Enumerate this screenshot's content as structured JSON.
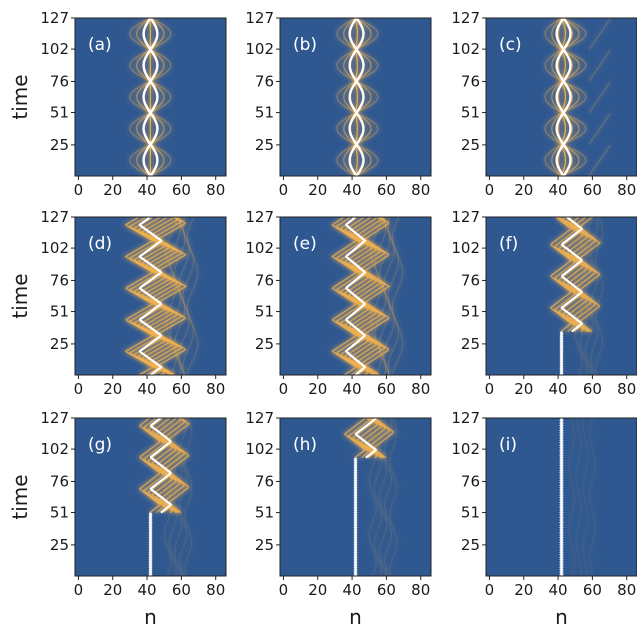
{
  "figure": {
    "background_color": "#2f5891",
    "wave_color": "#f3b24e",
    "peak_color": "#ffffff"
  },
  "chart_data": [
    {
      "type": "heatmap",
      "panel_label": "(a)",
      "pattern": "breathing",
      "xlabel": "",
      "ylabel": "time",
      "xlim": [
        -2,
        86
      ],
      "ylim": [
        0,
        127
      ],
      "x_ticks": [
        0,
        20,
        40,
        60,
        80
      ],
      "y_ticks": [
        25,
        51,
        76,
        102,
        127
      ],
      "grid": false
    },
    {
      "type": "heatmap",
      "panel_label": "(b)",
      "pattern": "breathing",
      "xlabel": "",
      "ylabel": "",
      "xlim": [
        -2,
        86
      ],
      "ylim": [
        0,
        127
      ],
      "x_ticks": [
        0,
        20,
        40,
        60,
        80
      ],
      "y_ticks": [
        25,
        51,
        76,
        102,
        127
      ],
      "grid": false
    },
    {
      "type": "heatmap",
      "panel_label": "(c)",
      "pattern": "breathing",
      "xlabel": "",
      "ylabel": "",
      "xlim": [
        -2,
        86
      ],
      "ylim": [
        0,
        127
      ],
      "x_ticks": [
        0,
        20,
        40,
        60,
        80
      ],
      "y_ticks": [
        25,
        51,
        76,
        102,
        127
      ],
      "grid": false
    },
    {
      "type": "heatmap",
      "panel_label": "(d)",
      "pattern": "zigzag",
      "xlabel": "",
      "ylabel": "time",
      "xlim": [
        -2,
        86
      ],
      "ylim": [
        0,
        127
      ],
      "x_ticks": [
        0,
        20,
        40,
        60,
        80
      ],
      "y_ticks": [
        25,
        51,
        76,
        102,
        127
      ],
      "grid": false
    },
    {
      "type": "heatmap",
      "panel_label": "(e)",
      "pattern": "zigzag",
      "xlabel": "",
      "ylabel": "",
      "xlim": [
        -2,
        86
      ],
      "ylim": [
        0,
        127
      ],
      "x_ticks": [
        0,
        20,
        40,
        60,
        80
      ],
      "y_ticks": [
        25,
        51,
        76,
        102,
        127
      ],
      "grid": false
    },
    {
      "type": "heatmap",
      "panel_label": "(f)",
      "pattern": "delayed",
      "onset": 35,
      "xlabel": "",
      "ylabel": "",
      "xlim": [
        -2,
        86
      ],
      "ylim": [
        0,
        127
      ],
      "x_ticks": [
        0,
        20,
        40,
        60,
        80
      ],
      "y_ticks": [
        25,
        51,
        76,
        102,
        127
      ],
      "grid": false
    },
    {
      "type": "heatmap",
      "panel_label": "(g)",
      "pattern": "delayed",
      "onset": 51,
      "xlabel": "n",
      "ylabel": "time",
      "xlim": [
        -2,
        86
      ],
      "ylim": [
        0,
        127
      ],
      "x_ticks": [
        0,
        20,
        40,
        60,
        80
      ],
      "y_ticks": [
        25,
        51,
        76,
        102,
        127
      ],
      "grid": false
    },
    {
      "type": "heatmap",
      "panel_label": "(h)",
      "pattern": "delayed",
      "onset": 95,
      "xlabel": "n",
      "ylabel": "",
      "xlim": [
        -2,
        86
      ],
      "ylim": [
        0,
        127
      ],
      "x_ticks": [
        0,
        20,
        40,
        60,
        80
      ],
      "y_ticks": [
        25,
        51,
        76,
        102,
        127
      ],
      "grid": false
    },
    {
      "type": "heatmap",
      "panel_label": "(i)",
      "pattern": "localized",
      "xlabel": "n",
      "ylabel": "",
      "xlim": [
        -2,
        86
      ],
      "ylim": [
        0,
        127
      ],
      "x_ticks": [
        0,
        20,
        40,
        60,
        80
      ],
      "y_ticks": [
        25,
        51,
        76,
        102,
        127
      ],
      "grid": false
    }
  ]
}
